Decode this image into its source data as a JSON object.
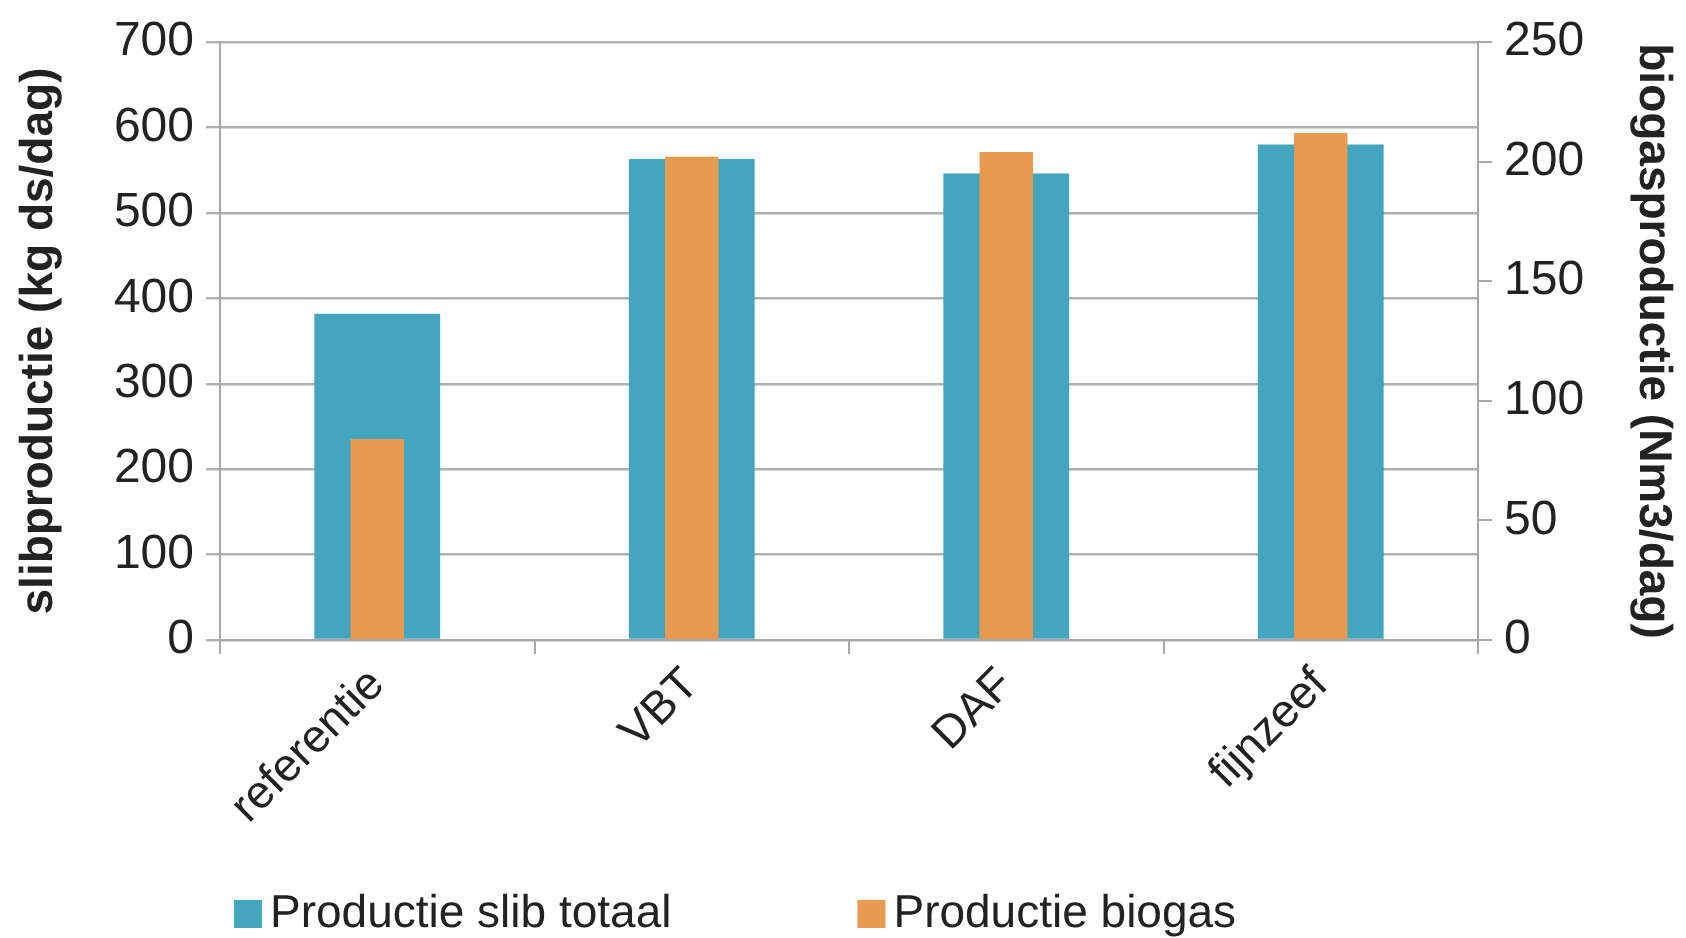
{
  "chart_data": {
    "type": "bar",
    "categories": [
      "referentie",
      "VBT",
      "DAF",
      "fijnzeef"
    ],
    "series": [
      {
        "name": "Productie slib totaal",
        "color": "#43a5be",
        "values": [
          382,
          563,
          546,
          580
        ]
      },
      {
        "name": "Productie biogas",
        "color": "#e79a50",
        "values": [
          84,
          202,
          204,
          212
        ],
        "axis": "y2"
      }
    ],
    "ylabel": "slibproductie (kg ds/dag)",
    "y2label": "biogasproductie (Nm3/dag)",
    "ylim": [
      0,
      700
    ],
    "yticks": [
      0,
      100,
      200,
      300,
      400,
      500,
      600,
      700
    ],
    "y2lim": [
      0,
      250
    ],
    "y2ticks": [
      0,
      50,
      100,
      150,
      200,
      250
    ],
    "grid": "y",
    "legend": "bottom"
  }
}
